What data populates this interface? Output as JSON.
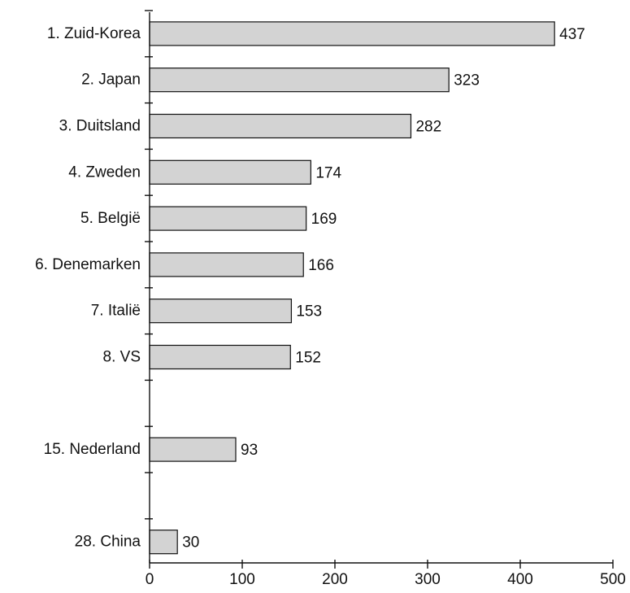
{
  "chart_data": {
    "type": "bar",
    "orientation": "horizontal",
    "categories": [
      "1. Zuid-Korea",
      "2. Japan",
      "3. Duitsland",
      "4. Zweden",
      "5. België",
      "6. Denemarken",
      "7. Italië",
      "8. VS",
      "15. Nederland",
      "28. China"
    ],
    "values": [
      437,
      323,
      282,
      174,
      169,
      166,
      153,
      152,
      93,
      30
    ],
    "slots": [
      0,
      1,
      2,
      3,
      4,
      5,
      6,
      7,
      9,
      11
    ],
    "slot_count": 12,
    "x_ticks": [
      0,
      100,
      200,
      300,
      400,
      500
    ],
    "xlim": [
      0,
      500
    ],
    "title": "",
    "xlabel": "",
    "ylabel": "",
    "grid": false,
    "legend": "none",
    "bar_color": "#d3d3d3",
    "edge_color": "#111111"
  }
}
